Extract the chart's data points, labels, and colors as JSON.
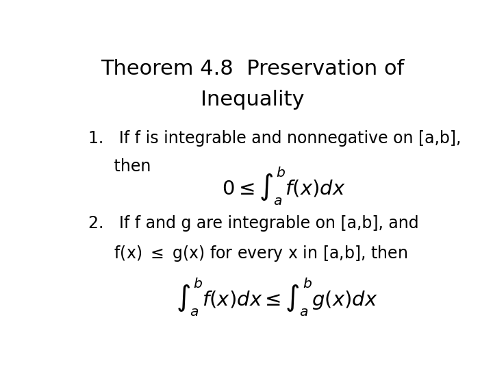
{
  "title_line1": "Theorem 4.8  Preservation of",
  "title_line2": "Inequality",
  "title_fontsize": 22,
  "title_font": "DejaVu Sans",
  "body_fontsize": 17,
  "math_fontsize": 21,
  "background_color": "#ffffff",
  "text_color": "#000000",
  "item1_text1": "1.   If f is integrable and nonnegative on [a,b],",
  "item1_text2": "     then",
  "item1_formula": "$0 \\leq \\int_{a}^{b} f(x)dx$",
  "item2_text1": "2.   If f and g are integrable on [a,b], and",
  "item2_text2": "     f(x) $\\leq$ g(x) for every x in [a,b], then",
  "item2_formula": "$\\int_{a}^{b} f(x)dx \\leq \\int_{a}^{b} g(x)dx$"
}
